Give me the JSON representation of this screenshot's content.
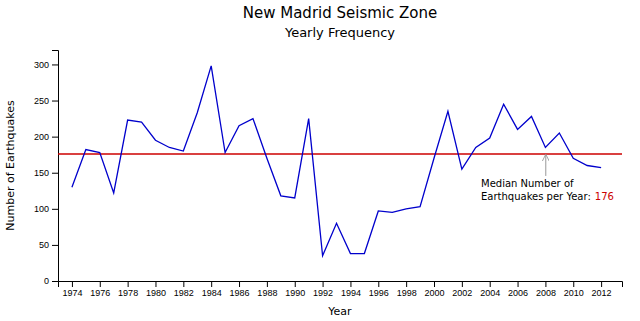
{
  "chart_data": {
    "type": "line",
    "title": "New Madrid Seismic Zone",
    "subtitle": "Yearly Frequency",
    "x_label": "Year",
    "y_label": "Number of Earthquakes",
    "x": [
      1974,
      1975,
      1976,
      1977,
      1978,
      1979,
      1980,
      1981,
      1982,
      1983,
      1984,
      1985,
      1986,
      1987,
      1988,
      1989,
      1990,
      1991,
      1992,
      1993,
      1994,
      1995,
      1996,
      1997,
      1998,
      1999,
      2000,
      2001,
      2002,
      2003,
      2004,
      2005,
      2006,
      2007,
      2008,
      2009,
      2010,
      2011,
      2012
    ],
    "values": [
      130,
      182,
      178,
      122,
      223,
      220,
      195,
      185,
      180,
      233,
      298,
      178,
      215,
      225,
      170,
      118,
      115,
      225,
      35,
      80,
      38,
      38,
      97,
      95,
      100,
      103,
      170,
      235,
      155,
      185,
      198,
      245,
      210,
      228,
      185,
      205,
      170,
      160,
      157
    ],
    "color": "#0000CC",
    "median_line": {
      "value": 176,
      "color": "#CC0000"
    },
    "annotations": [
      {
        "text": "Median Number of\nEarthquakes per Year:",
        "color": "#999999"
      }
    ],
    "xlim": [
      1973.0,
      2013.5
    ],
    "xticks": [
      1974,
      1976,
      1978,
      1980,
      1982,
      1984,
      1986,
      1988,
      1990,
      1992,
      1994,
      1996,
      1998,
      2000,
      2002,
      2004,
      2006,
      2008,
      2010,
      2012
    ],
    "ylim": [
      0,
      320
    ],
    "yticks": [
      0,
      50,
      100,
      150,
      200,
      250,
      300
    ],
    "grid": false
  }
}
